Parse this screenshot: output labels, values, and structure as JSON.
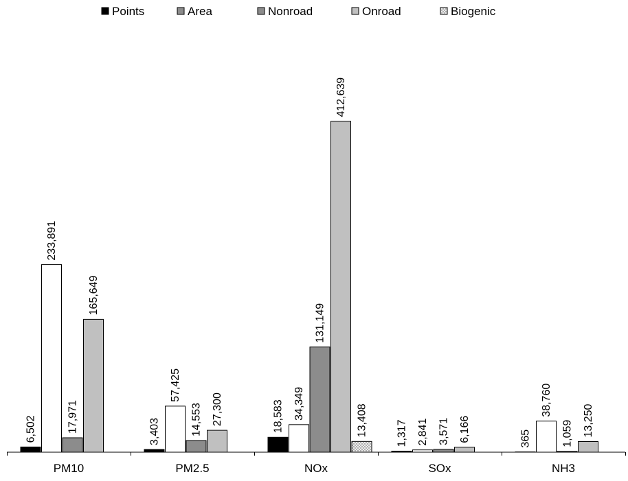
{
  "chart_data": {
    "type": "bar",
    "categories": [
      "PM10",
      "PM2.5",
      "NOx",
      "SOx",
      "NH3"
    ],
    "series": [
      {
        "name": "Points",
        "values": [
          6502,
          3403,
          18583,
          1317,
          365
        ],
        "labels": [
          "6,502",
          "3,403",
          "18,583",
          "1,317",
          "365"
        ],
        "color": "#000000",
        "pattern": "solid"
      },
      {
        "name": "Area",
        "values": [
          233891,
          57425,
          34349,
          2841,
          38760
        ],
        "labels": [
          "233,891",
          "57,425",
          "34,349",
          "2,841",
          "38,760"
        ],
        "color": "#ffffff",
        "pattern": "solid"
      },
      {
        "name": "Nonroad",
        "values": [
          17971,
          14553,
          131149,
          3571,
          1059
        ],
        "labels": [
          "17,971",
          "14,553",
          "131,149",
          "3,571",
          "1,059"
        ],
        "color": "#8c8c8c",
        "pattern": "solid"
      },
      {
        "name": "Onroad",
        "values": [
          165649,
          27300,
          412639,
          6166,
          13250
        ],
        "labels": [
          "165,649",
          "27,300",
          "412,639",
          "6,166",
          "13,250"
        ],
        "color": "#c0c0c0",
        "pattern": "solid"
      },
      {
        "name": "Biogenic",
        "values": [
          null,
          null,
          13408,
          null,
          null
        ],
        "labels": [
          null,
          null,
          "13,408",
          null,
          null
        ],
        "color": "#e6e6e6",
        "pattern": "dotted"
      }
    ],
    "legend_swatch_colors": [
      "#000000",
      "#8c8c8c",
      "#8c8c8c",
      "#c0c0c0",
      "#e6e6e6"
    ],
    "ylim": [
      0,
      450000
    ],
    "grid": false,
    "legend_position": "top",
    "title": "",
    "xlabel": "",
    "ylabel": ""
  }
}
